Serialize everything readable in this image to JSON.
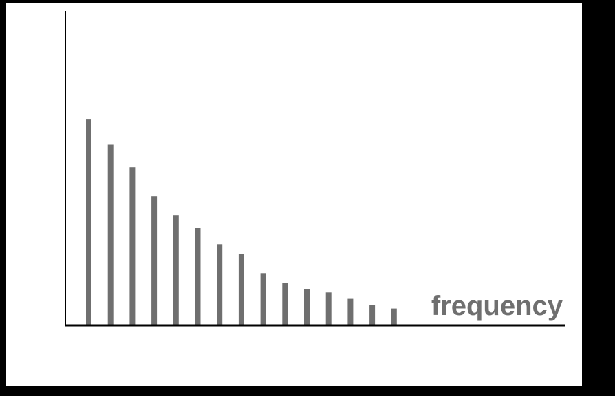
{
  "colors": {
    "frame": "#000000",
    "background": "#ffffff",
    "axis": "#000000",
    "bar": "#6f6f6f",
    "label": "#6f6f6f"
  },
  "chart_data": {
    "type": "bar",
    "title": "",
    "xlabel": "frequency",
    "ylabel": "",
    "grid": false,
    "legend": "none",
    "x": [
      1,
      2,
      3,
      4,
      5,
      6,
      7,
      8,
      9,
      10,
      11,
      12,
      13,
      14,
      15
    ],
    "values": [
      0.64,
      0.56,
      0.49,
      0.4,
      0.34,
      0.3,
      0.25,
      0.22,
      0.16,
      0.13,
      0.11,
      0.1,
      0.08,
      0.06,
      0.05
    ],
    "ylim": [
      0,
      1
    ]
  }
}
